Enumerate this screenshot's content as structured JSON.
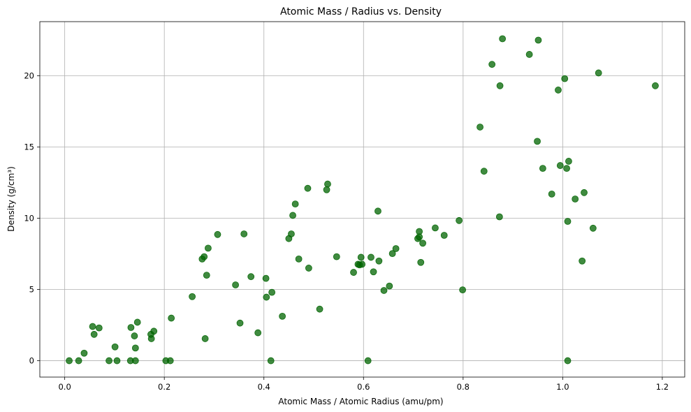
{
  "chart_data": {
    "type": "scatter",
    "title": "Atomic Mass / Radius vs. Density",
    "xlabel": "Atomic Mass / Atomic Radius (amu/pm)",
    "ylabel": "Density (g/cm³)",
    "xlim": [
      -0.05,
      1.245
    ],
    "ylim": [
      -1.15,
      23.8
    ],
    "x_ticks": [
      0.0,
      0.2,
      0.4,
      0.6,
      0.8,
      1.0,
      1.2
    ],
    "x_tick_labels": [
      "0.0",
      "0.2",
      "0.4",
      "0.6",
      "0.8",
      "1.0",
      "1.2"
    ],
    "y_ticks": [
      0,
      5,
      10,
      15,
      20
    ],
    "y_tick_labels": [
      "0",
      "5",
      "10",
      "15",
      "20"
    ],
    "grid": true,
    "marker_color": "#006400",
    "points": [
      {
        "x": 0.009,
        "y": 0.0
      },
      {
        "x": 0.028,
        "y": 0.0
      },
      {
        "x": 0.039,
        "y": 0.53
      },
      {
        "x": 0.056,
        "y": 2.4
      },
      {
        "x": 0.059,
        "y": 1.85
      },
      {
        "x": 0.069,
        "y": 2.3
      },
      {
        "x": 0.089,
        "y": 0.0
      },
      {
        "x": 0.101,
        "y": 0.97
      },
      {
        "x": 0.105,
        "y": 0.0
      },
      {
        "x": 0.132,
        "y": 0.0
      },
      {
        "x": 0.133,
        "y": 2.33
      },
      {
        "x": 0.14,
        "y": 1.74
      },
      {
        "x": 0.142,
        "y": 0.89
      },
      {
        "x": 0.142,
        "y": 0.0
      },
      {
        "x": 0.146,
        "y": 2.7
      },
      {
        "x": 0.173,
        "y": 1.85
      },
      {
        "x": 0.174,
        "y": 1.55
      },
      {
        "x": 0.179,
        "y": 2.07
      },
      {
        "x": 0.203,
        "y": 0.0
      },
      {
        "x": 0.212,
        "y": 0.0
      },
      {
        "x": 0.214,
        "y": 2.99
      },
      {
        "x": 0.256,
        "y": 4.5
      },
      {
        "x": 0.276,
        "y": 7.14
      },
      {
        "x": 0.28,
        "y": 7.3
      },
      {
        "x": 0.282,
        "y": 1.55
      },
      {
        "x": 0.285,
        "y": 6.0
      },
      {
        "x": 0.288,
        "y": 7.9
      },
      {
        "x": 0.307,
        "y": 8.86
      },
      {
        "x": 0.343,
        "y": 5.32
      },
      {
        "x": 0.352,
        "y": 2.64
      },
      {
        "x": 0.36,
        "y": 8.9
      },
      {
        "x": 0.374,
        "y": 5.9
      },
      {
        "x": 0.388,
        "y": 1.96
      },
      {
        "x": 0.404,
        "y": 5.78
      },
      {
        "x": 0.405,
        "y": 4.46
      },
      {
        "x": 0.414,
        "y": 0.0
      },
      {
        "x": 0.416,
        "y": 4.8
      },
      {
        "x": 0.437,
        "y": 3.12
      },
      {
        "x": 0.45,
        "y": 8.57
      },
      {
        "x": 0.455,
        "y": 8.9
      },
      {
        "x": 0.458,
        "y": 10.2
      },
      {
        "x": 0.463,
        "y": 11.0
      },
      {
        "x": 0.47,
        "y": 7.14
      },
      {
        "x": 0.488,
        "y": 12.1
      },
      {
        "x": 0.49,
        "y": 6.5
      },
      {
        "x": 0.512,
        "y": 3.62
      },
      {
        "x": 0.526,
        "y": 12.0
      },
      {
        "x": 0.528,
        "y": 12.4
      },
      {
        "x": 0.546,
        "y": 7.3
      },
      {
        "x": 0.58,
        "y": 6.2
      },
      {
        "x": 0.589,
        "y": 6.77
      },
      {
        "x": 0.592,
        "y": 6.73
      },
      {
        "x": 0.595,
        "y": 7.26
      },
      {
        "x": 0.597,
        "y": 6.77
      },
      {
        "x": 0.609,
        "y": 0.0
      },
      {
        "x": 0.615,
        "y": 7.26
      },
      {
        "x": 0.62,
        "y": 6.24
      },
      {
        "x": 0.629,
        "y": 10.5
      },
      {
        "x": 0.631,
        "y": 7.0
      },
      {
        "x": 0.641,
        "y": 4.93
      },
      {
        "x": 0.652,
        "y": 5.24
      },
      {
        "x": 0.658,
        "y": 7.52
      },
      {
        "x": 0.665,
        "y": 7.87
      },
      {
        "x": 0.709,
        "y": 8.57
      },
      {
        "x": 0.712,
        "y": 8.69
      },
      {
        "x": 0.712,
        "y": 9.07
      },
      {
        "x": 0.715,
        "y": 6.9
      },
      {
        "x": 0.719,
        "y": 8.25
      },
      {
        "x": 0.744,
        "y": 9.32
      },
      {
        "x": 0.762,
        "y": 8.8
      },
      {
        "x": 0.792,
        "y": 9.84
      },
      {
        "x": 0.799,
        "y": 4.97
      },
      {
        "x": 0.834,
        "y": 16.4
      },
      {
        "x": 0.842,
        "y": 13.3
      },
      {
        "x": 0.858,
        "y": 20.8
      },
      {
        "x": 0.873,
        "y": 10.1
      },
      {
        "x": 0.874,
        "y": 19.3
      },
      {
        "x": 0.879,
        "y": 22.6
      },
      {
        "x": 0.933,
        "y": 21.5
      },
      {
        "x": 0.949,
        "y": 15.4
      },
      {
        "x": 0.951,
        "y": 22.5
      },
      {
        "x": 0.96,
        "y": 13.5
      },
      {
        "x": 0.978,
        "y": 11.7
      },
      {
        "x": 0.991,
        "y": 19.0
      },
      {
        "x": 0.995,
        "y": 13.7
      },
      {
        "x": 1.004,
        "y": 19.8
      },
      {
        "x": 1.008,
        "y": 13.5
      },
      {
        "x": 1.01,
        "y": 9.78
      },
      {
        "x": 1.01,
        "y": 0.0
      },
      {
        "x": 1.012,
        "y": 14.0
      },
      {
        "x": 1.025,
        "y": 11.35
      },
      {
        "x": 1.039,
        "y": 7.0
      },
      {
        "x": 1.043,
        "y": 11.8
      },
      {
        "x": 1.061,
        "y": 9.3
      },
      {
        "x": 1.072,
        "y": 20.2
      },
      {
        "x": 1.186,
        "y": 19.3
      }
    ]
  }
}
